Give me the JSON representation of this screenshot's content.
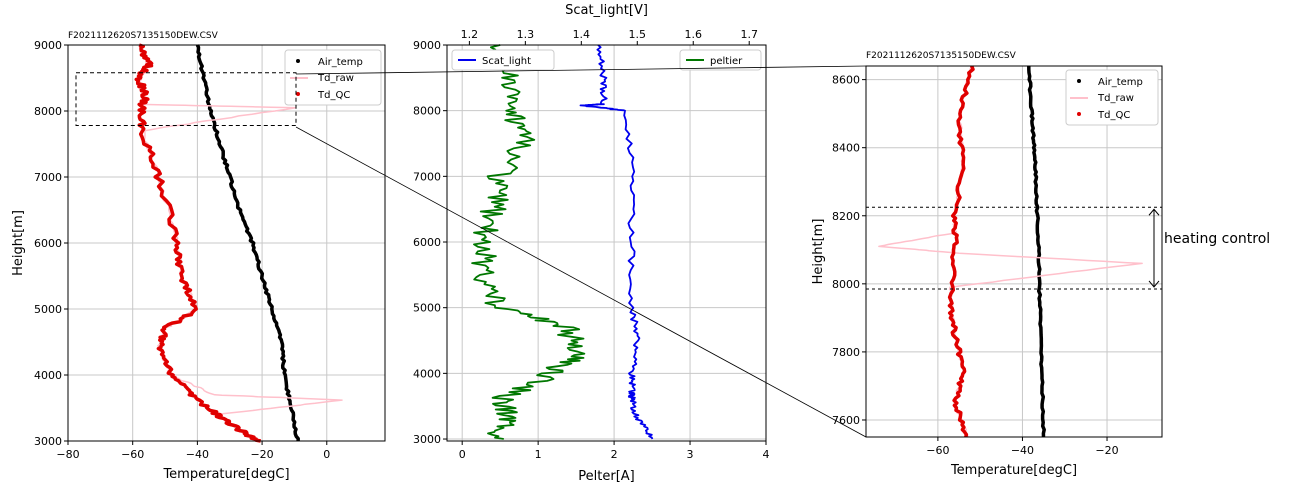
{
  "chart_data": [
    {
      "type": "line",
      "title": "F2021112620S7135150DEW.CSV",
      "xlabel": "Temperature[degC]",
      "ylabel": "Height[m]",
      "xlim": [
        -80,
        18
      ],
      "ylim": [
        3000,
        9000
      ],
      "xticks": [
        "−80",
        "−60",
        "−40",
        "−20",
        "0"
      ],
      "yticks": [
        "3000",
        "4000",
        "5000",
        "6000",
        "7000",
        "8000",
        "9000"
      ],
      "grid": true,
      "legend": "top-right",
      "series": [
        {
          "name": "Air_temp",
          "color": "#000000",
          "x": [
            -9,
            -11,
            -13,
            -14,
            -17,
            -20,
            -23,
            -27,
            -30,
            -33,
            -36,
            -38,
            -40
          ],
          "y": [
            3000,
            3500,
            4000,
            4500,
            5000,
            5500,
            6000,
            6500,
            7000,
            7500,
            8000,
            8500,
            9000
          ]
        },
        {
          "name": "Td_raw",
          "color": "#ffc0cb",
          "x": [
            -21,
            -28,
            -34,
            5,
            -35,
            -48,
            -52,
            -50,
            -40,
            -45,
            -46,
            -52,
            -57,
            -10,
            -57,
            -56,
            -58,
            -55,
            -58
          ],
          "y": [
            3000,
            3200,
            3400,
            3620,
            3700,
            4000,
            4400,
            4700,
            5000,
            5500,
            6000,
            7000,
            7700,
            8050,
            8100,
            8200,
            8500,
            8700,
            9000
          ]
        },
        {
          "name": "Td_QC",
          "color": "#e00000",
          "x": [
            -21,
            -28,
            -34,
            -42,
            -48,
            -52,
            -50,
            -40,
            -45,
            -46,
            -52,
            -57,
            -57,
            -56,
            -58,
            -55,
            -58
          ],
          "y": [
            3000,
            3200,
            3400,
            3700,
            4000,
            4400,
            4700,
            5000,
            5500,
            6000,
            7000,
            7700,
            8100,
            8200,
            8500,
            8700,
            9000
          ]
        }
      ]
    },
    {
      "type": "line",
      "title": "",
      "xlabel": "Pelter[A]",
      "x2label": "Scat_light[V]",
      "ylabel": "",
      "xlim": [
        -0.2,
        4
      ],
      "x2lim": [
        1.16,
        1.73
      ],
      "ylim": [
        2970,
        9000
      ],
      "xticks": [
        "0",
        "1",
        "2",
        "3",
        "4"
      ],
      "x2ticks": [
        "1.2",
        "1.3",
        "1.4",
        "1.5",
        "1.6",
        "1.7"
      ],
      "yticks": [
        "3000",
        "4000",
        "5000",
        "6000",
        "7000",
        "8000",
        "9000"
      ],
      "grid": true,
      "legend_left": "top-left",
      "legend_right": "top-right",
      "series": [
        {
          "name": "Scat_light",
          "color": "#0000ee",
          "axis": "top",
          "x": [
            1.53,
            1.5,
            1.49,
            1.49,
            1.49,
            1.5,
            1.49,
            1.49,
            1.49,
            1.48,
            1.4,
            1.44,
            1.44,
            1.43
          ],
          "y": [
            3000,
            3300,
            3600,
            3700,
            4000,
            4500,
            5000,
            6000,
            7000,
            8000,
            8080,
            8100,
            8500,
            9000
          ]
        },
        {
          "name": "peltier",
          "color": "#007700",
          "axis": "bottom",
          "x": [
            0.4,
            0.6,
            0.5,
            1.2,
            1.5,
            1.4,
            0.5,
            0.3,
            0.3,
            0.4,
            0.5,
            0.9,
            0.6,
            0.6,
            0.5
          ],
          "y": [
            3000,
            3300,
            3600,
            4000,
            4300,
            4700,
            5000,
            5500,
            6000,
            6500,
            7000,
            7600,
            8000,
            8500,
            9000
          ]
        }
      ]
    },
    {
      "type": "line",
      "title": "F2021112620S7135150DEW.CSV",
      "xlabel": "Temperature[degC]",
      "ylabel": "Height[m]",
      "xlim": [
        -77,
        -7
      ],
      "ylim": [
        7550,
        8640
      ],
      "xticks": [
        "−60",
        "−40",
        "−20"
      ],
      "yticks": [
        "7600",
        "7800",
        "8000",
        "8200",
        "8400",
        "8600"
      ],
      "grid": true,
      "legend": "top-right",
      "series": [
        {
          "name": "Air_temp",
          "color": "#000000",
          "x": [
            -35,
            -35.3,
            -35.7,
            -36,
            -36.3,
            -36.8,
            -37.2,
            -37.8,
            -38.5
          ],
          "y": [
            7550,
            7700,
            7850,
            8000,
            8150,
            8300,
            8400,
            8500,
            8640
          ]
        },
        {
          "name": "Td_raw",
          "color": "#ffc0cb",
          "x": [
            -53,
            -56,
            -54,
            -56,
            -57,
            -57,
            -12,
            -55,
            -74,
            -56,
            -56,
            -54,
            -55,
            -52
          ],
          "y": [
            7550,
            7650,
            7750,
            7850,
            7950,
            7990,
            8060,
            8090,
            8110,
            8150,
            8200,
            8350,
            8500,
            8640
          ]
        },
        {
          "name": "Td_QC",
          "color": "#e00000",
          "x": [
            -53,
            -56,
            -54,
            -56,
            -57,
            -56,
            -56,
            -54,
            -55,
            -52
          ],
          "y": [
            7550,
            7650,
            7750,
            7850,
            7950,
            8100,
            8200,
            8350,
            8500,
            8640
          ]
        }
      ]
    }
  ],
  "annotation": "heating control"
}
